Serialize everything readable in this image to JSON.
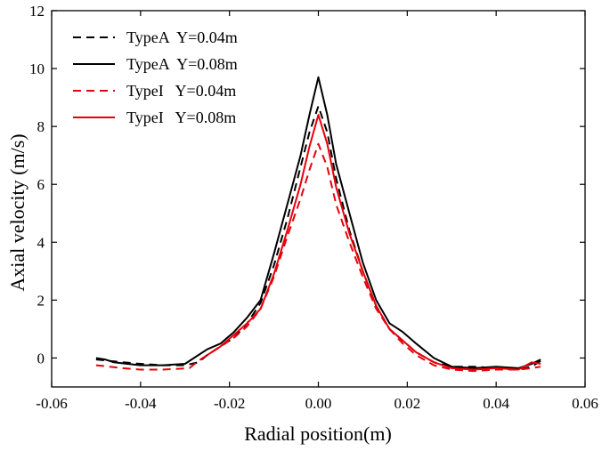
{
  "chart_data": {
    "type": "line",
    "title": "",
    "xlabel": "Radial position(m)",
    "ylabel": "Axial velocity (m/s)",
    "xlim": [
      -0.06,
      0.06
    ],
    "ylim": [
      -1,
      12
    ],
    "xticks": [
      -0.06,
      -0.04,
      -0.02,
      0.0,
      0.02,
      0.04,
      0.06
    ],
    "xtick_labels": [
      "-0.06",
      "-0.04",
      "-0.02",
      "0.00",
      "0.02",
      "0.04",
      "0.06"
    ],
    "yticks": [
      0,
      2,
      4,
      6,
      8,
      10,
      12
    ],
    "ytick_labels": [
      "0",
      "2",
      "4",
      "6",
      "8",
      "10",
      "12"
    ],
    "grid": false,
    "legend_position": "top-left",
    "series": [
      {
        "name": "TypeA  Y=0.04m",
        "color": "#000000",
        "dash": "dashed",
        "x": [
          -0.05,
          -0.047,
          -0.044,
          -0.04,
          -0.035,
          -0.03,
          -0.027,
          -0.025,
          -0.022,
          -0.019,
          -0.016,
          -0.013,
          -0.01,
          -0.007,
          -0.004,
          -0.002,
          0.0,
          0.002,
          0.004,
          0.007,
          0.01,
          0.013,
          0.016,
          0.019,
          0.022,
          0.026,
          0.03,
          0.035,
          0.04,
          0.045,
          0.048,
          0.05
        ],
        "y": [
          -0.05,
          -0.1,
          -0.15,
          -0.2,
          -0.25,
          -0.25,
          -0.15,
          0.1,
          0.4,
          0.7,
          1.2,
          1.9,
          3.2,
          4.8,
          6.6,
          7.8,
          8.7,
          7.8,
          6.2,
          4.4,
          3.0,
          1.8,
          1.0,
          0.6,
          0.2,
          -0.15,
          -0.3,
          -0.3,
          -0.35,
          -0.4,
          -0.3,
          -0.1
        ]
      },
      {
        "name": "TypeA  Y=0.08m",
        "color": "#000000",
        "dash": "solid",
        "x": [
          -0.05,
          -0.048,
          -0.046,
          -0.043,
          -0.04,
          -0.035,
          -0.03,
          -0.028,
          -0.025,
          -0.022,
          -0.019,
          -0.016,
          -0.013,
          -0.01,
          -0.007,
          -0.004,
          -0.002,
          0.0,
          0.002,
          0.004,
          0.007,
          0.01,
          0.013,
          0.016,
          0.019,
          0.022,
          0.026,
          0.03,
          0.035,
          0.04,
          0.045,
          0.048,
          0.05
        ],
        "y": [
          0.0,
          -0.05,
          -0.15,
          -0.2,
          -0.25,
          -0.25,
          -0.2,
          0.0,
          0.3,
          0.5,
          0.9,
          1.4,
          2.0,
          3.6,
          5.3,
          7.0,
          8.4,
          9.7,
          8.4,
          6.7,
          5.0,
          3.3,
          2.0,
          1.2,
          0.9,
          0.5,
          0.0,
          -0.3,
          -0.35,
          -0.3,
          -0.35,
          -0.2,
          -0.05
        ]
      },
      {
        "name": "TypeI   Y=0.04m",
        "color": "#e8000b",
        "dash": "dashed",
        "x": [
          -0.05,
          -0.047,
          -0.044,
          -0.04,
          -0.035,
          -0.029,
          -0.027,
          -0.025,
          -0.022,
          -0.019,
          -0.016,
          -0.013,
          -0.01,
          -0.007,
          -0.004,
          -0.002,
          0.0,
          0.002,
          0.004,
          0.007,
          0.01,
          0.013,
          0.016,
          0.019,
          0.022,
          0.026,
          0.03,
          0.035,
          0.04,
          0.045,
          0.048,
          0.05
        ],
        "y": [
          -0.25,
          -0.3,
          -0.35,
          -0.4,
          -0.4,
          -0.35,
          -0.1,
          0.1,
          0.4,
          0.7,
          1.1,
          1.7,
          2.8,
          4.2,
          5.5,
          6.5,
          7.4,
          6.6,
          5.3,
          4.0,
          2.8,
          1.7,
          1.0,
          0.5,
          0.1,
          -0.25,
          -0.4,
          -0.45,
          -0.4,
          -0.4,
          -0.35,
          -0.3
        ]
      },
      {
        "name": "TypeI   Y=0.08m",
        "color": "#e8000b",
        "dash": "solid",
        "x": [
          -0.025,
          -0.022,
          -0.019,
          -0.016,
          -0.013,
          -0.01,
          -0.007,
          -0.004,
          -0.002,
          0.0,
          0.002,
          0.004,
          0.007,
          0.01,
          0.013,
          0.016,
          0.019,
          0.022,
          0.026,
          0.03,
          0.035,
          0.04,
          0.045,
          0.048,
          0.05
        ],
        "y": [
          0.1,
          0.4,
          0.8,
          1.2,
          1.7,
          2.9,
          4.4,
          6.0,
          7.3,
          8.4,
          7.4,
          5.9,
          4.3,
          3.0,
          1.8,
          1.0,
          0.6,
          0.2,
          -0.15,
          -0.35,
          -0.4,
          -0.35,
          -0.4,
          -0.15,
          -0.2
        ]
      }
    ]
  }
}
